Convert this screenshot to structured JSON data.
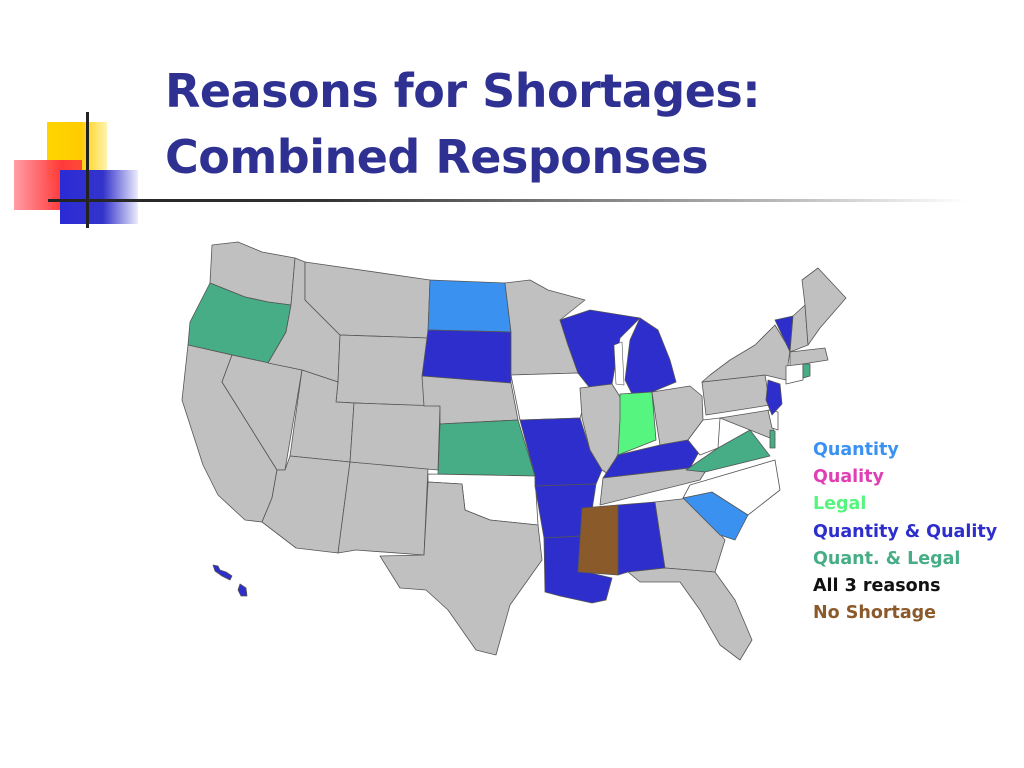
{
  "title": {
    "line1": "Reasons for Shortages:",
    "line2": "Combined Responses"
  },
  "colors": {
    "title": "#2e3192",
    "no_data": "#c0c0c0",
    "none_shown": "#ffffff",
    "quantity": "#3a91f0",
    "quality": "#e03fb4",
    "legal": "#55f57f",
    "quantity_quality": "#2e2ecc",
    "quant_legal": "#46ad86",
    "all_3_reasons": "#111111",
    "no_shortage": "#8b5a2b"
  },
  "legend": [
    {
      "label": "Quantity",
      "color": "#3a91f0"
    },
    {
      "label": "Quality",
      "color": "#e03fb4"
    },
    {
      "label": "Legal",
      "color": "#55f57f"
    },
    {
      "label": "Quantity & Quality",
      "color": "#2e2ecc"
    },
    {
      "label": "Quant. & Legal",
      "color": "#46ad86"
    },
    {
      "label": "All 3 reasons",
      "color": "#111111"
    },
    {
      "label": "No Shortage",
      "color": "#8b5a2b"
    }
  ],
  "state_categories": {
    "WA": "no_data",
    "OR": "quant_legal",
    "CA": "no_data",
    "NV": "no_data",
    "ID": "no_data",
    "MT": "no_data",
    "WY": "no_data",
    "UT": "no_data",
    "AZ": "no_data",
    "NM": "no_data",
    "CO": "no_data",
    "ND": "quantity",
    "SD": "quantity_quality",
    "NE": "no_data",
    "KS": "quant_legal",
    "OK": "none_shown",
    "TX": "no_data",
    "MN": "no_data",
    "IA": "none_shown",
    "MO": "quantity_quality",
    "AR": "quantity_quality",
    "LA": "quantity_quality",
    "WI": "quantity_quality",
    "IL": "no_data",
    "MI": "quantity_quality",
    "IN": "legal",
    "OH": "no_data",
    "KY": "quantity_quality",
    "TN": "no_data",
    "MS": "no_shortage",
    "AL": "quantity_quality",
    "GA": "no_data",
    "FL": "no_data",
    "SC": "quantity",
    "NC": "none_shown",
    "VA": "quant_legal",
    "WV": "none_shown",
    "PA": "no_data",
    "NY": "no_data",
    "NJ": "quantity_quality",
    "DE": "none_shown",
    "MD": "no_data",
    "VT": "quantity_quality",
    "NH": "no_data",
    "ME": "no_data",
    "MA": "no_data",
    "CT": "none_shown",
    "RI": "quant_legal",
    "HI": "quantity_quality",
    "DC": "quant_legal"
  }
}
